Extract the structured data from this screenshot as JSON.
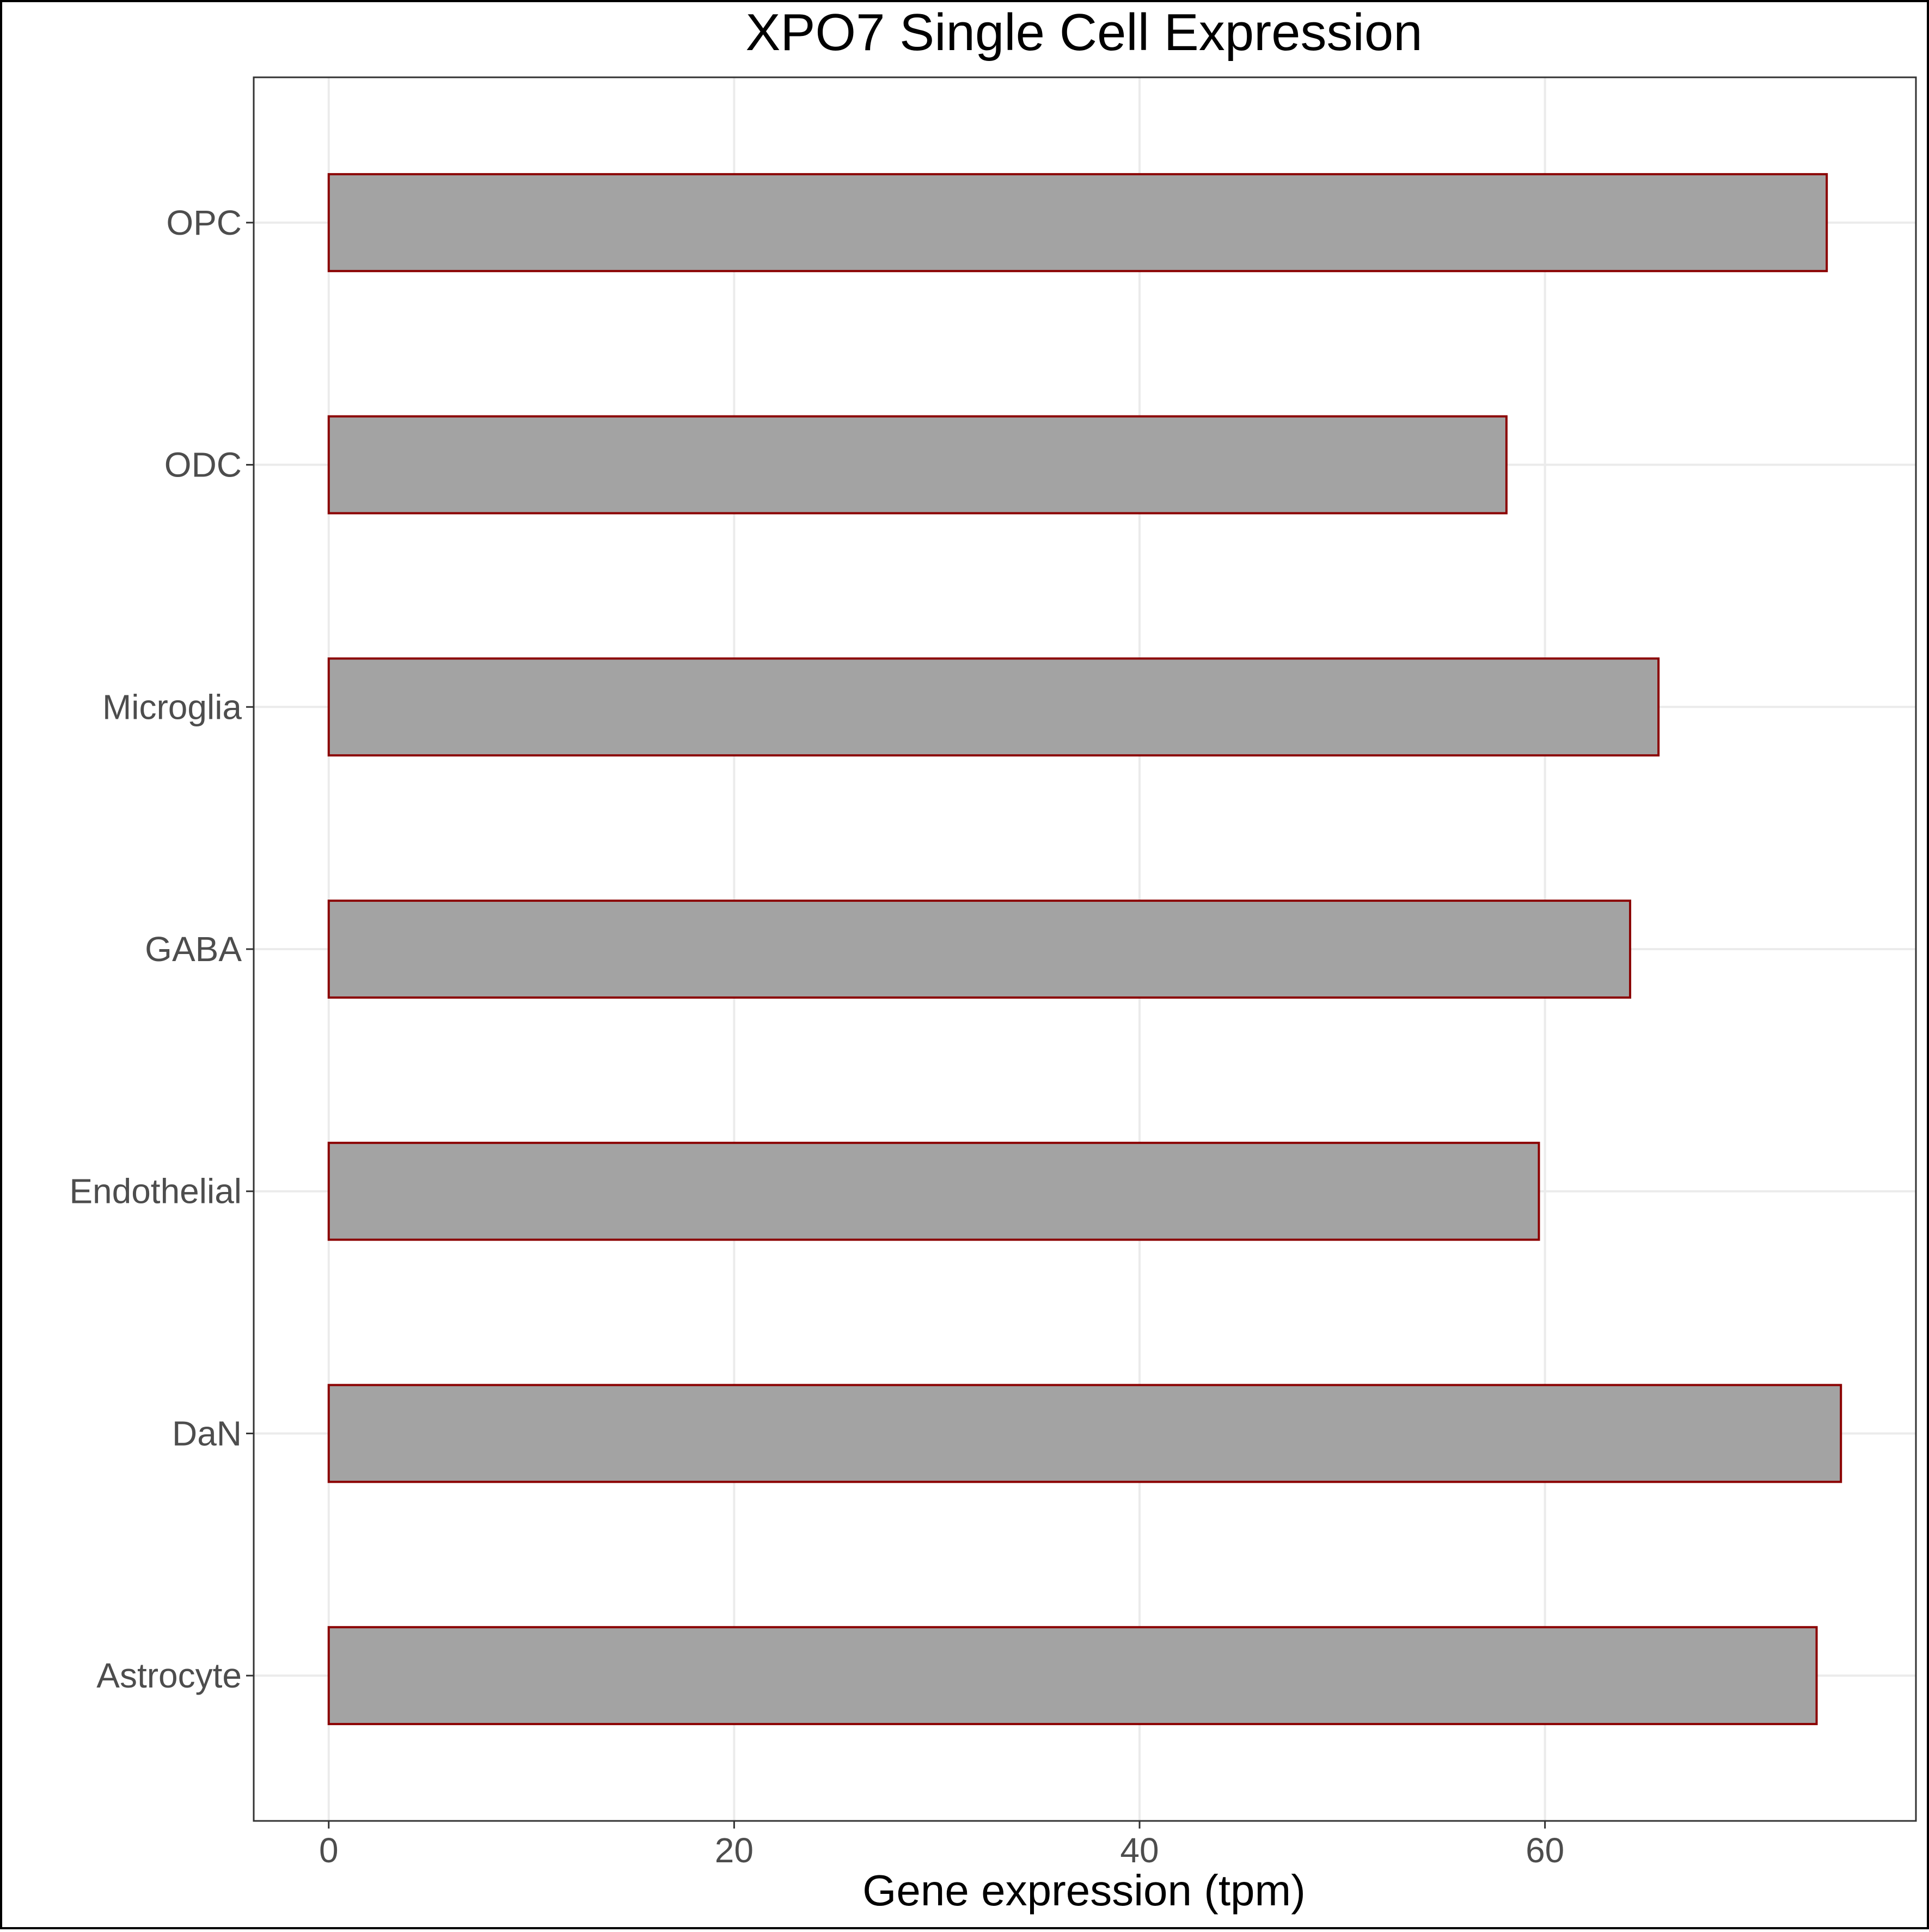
{
  "chart_data": {
    "type": "bar",
    "orientation": "horizontal",
    "title": "XPO7 Single Cell Expression",
    "xlabel": "Gene expression (tpm)",
    "ylabel": "",
    "categories": [
      "Astrocyte",
      "DaN",
      "Endothelial",
      "GABA",
      "Microglia",
      "ODC",
      "OPC"
    ],
    "values": [
      73.4,
      74.6,
      59.7,
      64.2,
      65.6,
      58.1,
      73.9
    ],
    "xlim": [
      -3.7,
      78.3
    ],
    "xticks": [
      0,
      20,
      40,
      60
    ],
    "xtick_labels": [
      "0",
      "20",
      "40",
      "60"
    ],
    "grid": true,
    "legend": "none",
    "colors": {
      "bar_fill": "#a3a3a3",
      "bar_outline": "#8b0000",
      "grid": "#ebebeb",
      "tick_text": "#4d4d4d"
    }
  }
}
